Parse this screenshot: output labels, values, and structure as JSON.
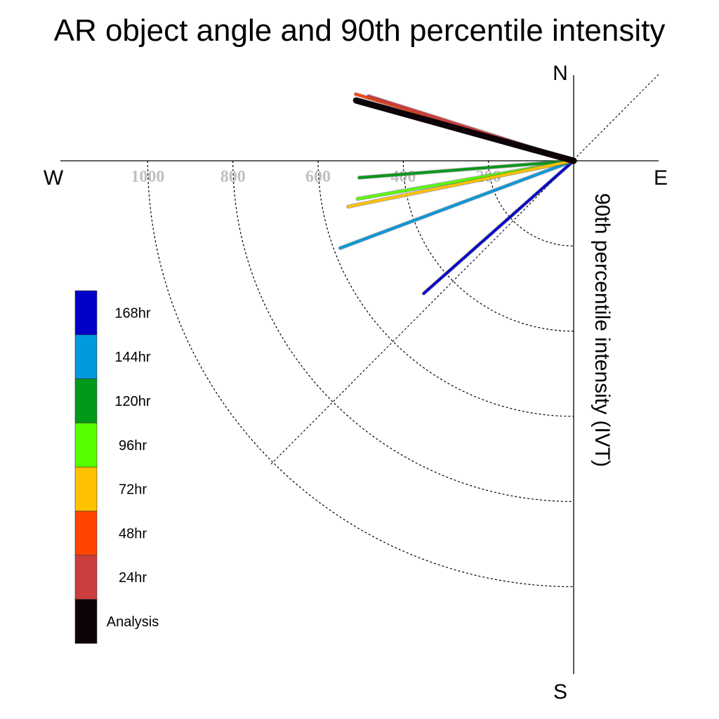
{
  "chart_data": {
    "type": "polar-line",
    "title": "AR object angle and 90th percentile intensity",
    "ylabel": "90th percentile intensity (IVT)",
    "directions": {
      "north": "N",
      "south": "S",
      "east": "E",
      "west": "W"
    },
    "radial_ticks": [
      200,
      400,
      600,
      800,
      1000
    ],
    "rlim": [
      0,
      1200
    ],
    "grid": true,
    "legend_position": "left",
    "series": [
      {
        "name": "Analysis",
        "color": "#0d0309",
        "angle_deg": 164.5,
        "intensity": 530
      },
      {
        "name": "24hr",
        "color": "#cc3d3d",
        "angle_deg": 162.5,
        "intensity": 505
      },
      {
        "name": "48hr",
        "color": "#ff4500",
        "angle_deg": 163.0,
        "intensity": 535
      },
      {
        "name": "72hr",
        "color": "#ffc200",
        "angle_deg": 191.5,
        "intensity": 540
      },
      {
        "name": "96hr",
        "color": "#55ff00",
        "angle_deg": 190.0,
        "intensity": 515
      },
      {
        "name": "120hr",
        "color": "#00991a",
        "angle_deg": 184.5,
        "intensity": 505
      },
      {
        "name": "144hr",
        "color": "#0099dd",
        "angle_deg": 200.5,
        "intensity": 585
      },
      {
        "name": "168hr",
        "color": "#0000c8",
        "angle_deg": 221.5,
        "intensity": 470
      }
    ]
  }
}
